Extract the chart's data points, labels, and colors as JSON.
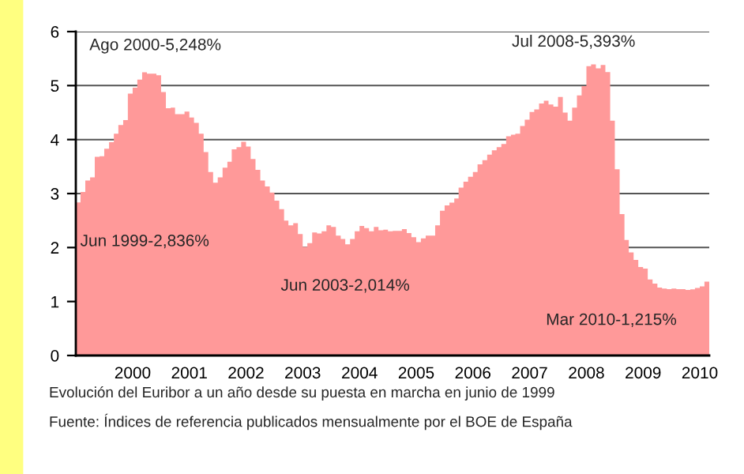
{
  "chart_data": {
    "type": "area",
    "color": "#ff9999",
    "x": [
      "1999-06",
      "1999-07",
      "1999-08",
      "1999-09",
      "1999-10",
      "1999-11",
      "1999-12",
      "2000-01",
      "2000-02",
      "2000-03",
      "2000-04",
      "2000-05",
      "2000-06",
      "2000-07",
      "2000-08",
      "2000-09",
      "2000-10",
      "2000-11",
      "2000-12",
      "2001-01",
      "2001-02",
      "2001-03",
      "2001-04",
      "2001-05",
      "2001-06",
      "2001-07",
      "2001-08",
      "2001-09",
      "2001-10",
      "2001-11",
      "2001-12",
      "2002-01",
      "2002-02",
      "2002-03",
      "2002-04",
      "2002-05",
      "2002-06",
      "2002-07",
      "2002-08",
      "2002-09",
      "2002-10",
      "2002-11",
      "2002-12",
      "2003-01",
      "2003-02",
      "2003-03",
      "2003-04",
      "2003-05",
      "2003-06",
      "2003-07",
      "2003-08",
      "2003-09",
      "2003-10",
      "2003-11",
      "2003-12",
      "2004-01",
      "2004-02",
      "2004-03",
      "2004-04",
      "2004-05",
      "2004-06",
      "2004-07",
      "2004-08",
      "2004-09",
      "2004-10",
      "2004-11",
      "2004-12",
      "2005-01",
      "2005-02",
      "2005-03",
      "2005-04",
      "2005-05",
      "2005-06",
      "2005-07",
      "2005-08",
      "2005-09",
      "2005-10",
      "2005-11",
      "2005-12",
      "2006-01",
      "2006-02",
      "2006-03",
      "2006-04",
      "2006-05",
      "2006-06",
      "2006-07",
      "2006-08",
      "2006-09",
      "2006-10",
      "2006-11",
      "2006-12",
      "2007-01",
      "2007-02",
      "2007-03",
      "2007-04",
      "2007-05",
      "2007-06",
      "2007-07",
      "2007-08",
      "2007-09",
      "2007-10",
      "2007-11",
      "2007-12",
      "2008-01",
      "2008-02",
      "2008-03",
      "2008-04",
      "2008-05",
      "2008-06",
      "2008-07",
      "2008-08",
      "2008-09",
      "2008-10",
      "2008-11",
      "2008-12",
      "2009-01",
      "2009-02",
      "2009-03",
      "2009-04",
      "2009-05",
      "2009-06",
      "2009-07",
      "2009-08",
      "2009-09",
      "2009-10",
      "2009-11",
      "2009-12",
      "2010-01",
      "2010-02",
      "2010-03",
      "2010-04",
      "2010-05",
      "2010-06",
      "2010-07",
      "2010-08"
    ],
    "values": [
      2.836,
      3.03,
      3.24,
      3.3,
      3.68,
      3.69,
      3.83,
      3.95,
      4.11,
      4.27,
      4.36,
      4.85,
      4.96,
      5.11,
      5.248,
      5.22,
      5.22,
      5.19,
      4.88,
      4.58,
      4.59,
      4.47,
      4.47,
      4.52,
      4.41,
      4.31,
      4.11,
      3.77,
      3.4,
      3.2,
      3.3,
      3.48,
      3.59,
      3.82,
      3.86,
      3.96,
      3.87,
      3.64,
      3.44,
      3.24,
      3.13,
      3.02,
      2.87,
      2.71,
      2.5,
      2.41,
      2.45,
      2.25,
      2.014,
      2.08,
      2.28,
      2.26,
      2.3,
      2.41,
      2.38,
      2.22,
      2.16,
      2.06,
      2.16,
      2.3,
      2.4,
      2.36,
      2.3,
      2.38,
      2.32,
      2.33,
      2.3,
      2.31,
      2.31,
      2.34,
      2.27,
      2.19,
      2.1,
      2.17,
      2.22,
      2.22,
      2.41,
      2.68,
      2.78,
      2.83,
      2.91,
      3.11,
      3.22,
      3.31,
      3.4,
      3.54,
      3.62,
      3.72,
      3.8,
      3.86,
      3.92,
      4.06,
      4.09,
      4.11,
      4.25,
      4.37,
      4.51,
      4.56,
      4.67,
      4.72,
      4.65,
      4.61,
      4.79,
      4.5,
      4.35,
      4.59,
      4.82,
      4.99,
      5.36,
      5.393,
      5.32,
      5.38,
      5.25,
      4.35,
      3.45,
      2.62,
      2.14,
      1.91,
      1.77,
      1.64,
      1.61,
      1.41,
      1.33,
      1.26,
      1.24,
      1.23,
      1.24,
      1.23,
      1.23,
      1.215,
      1.225,
      1.25,
      1.28,
      1.37,
      1.42
    ],
    "xlim": [
      "1999-06",
      "2010-08"
    ],
    "xticks": [
      {
        "value": "2000-06",
        "label": "2000"
      },
      {
        "value": "2001-06",
        "label": "2001"
      },
      {
        "value": "2002-06",
        "label": "2002"
      },
      {
        "value": "2003-06",
        "label": "2003"
      },
      {
        "value": "2004-06",
        "label": "2004"
      },
      {
        "value": "2005-06",
        "label": "2005"
      },
      {
        "value": "2006-06",
        "label": "2006"
      },
      {
        "value": "2007-06",
        "label": "2007"
      },
      {
        "value": "2008-06",
        "label": "2008"
      },
      {
        "value": "2009-06",
        "label": "2009"
      },
      {
        "value": "2010-06",
        "label": "2010"
      }
    ],
    "ylim": [
      0,
      6
    ],
    "yticks": [
      0,
      1,
      2,
      3,
      4,
      5,
      6
    ],
    "grid": "y",
    "annotations": [
      {
        "text": "Jun 1999-2,836%",
        "x": "1999-06",
        "y": 2.836
      },
      {
        "text": "Ago 2000-5,248%",
        "x": "2000-08",
        "y": 5.248
      },
      {
        "text": "Jun 2003-2,014%",
        "x": "2003-06",
        "y": 2.014
      },
      {
        "text": "Jul 2008-5,393%",
        "x": "2008-07",
        "y": 5.393
      },
      {
        "text": "Mar 2010-1,215%",
        "x": "2010-03",
        "y": 1.215
      },
      "Evolución del Euribor a un año desde su puesta en marcha en junio de 1999",
      "Fuente: Índices de referencia publicados mensualmente por el BOE de España"
    ]
  }
}
